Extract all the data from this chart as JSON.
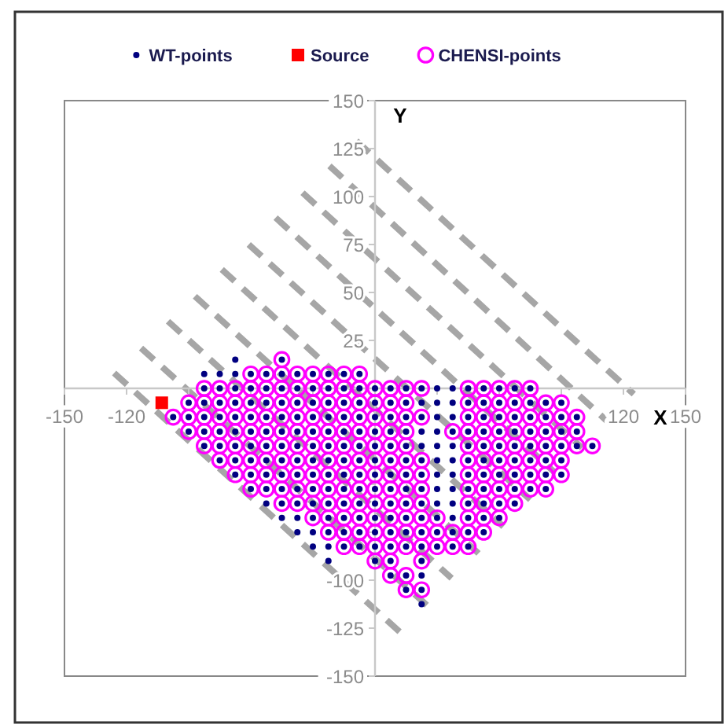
{
  "chart_data": {
    "type": "scatter",
    "xlabel": "X",
    "ylabel": "Y",
    "xlim": [
      -150,
      150
    ],
    "ylim": [
      -150,
      150
    ],
    "xticks": [
      -150,
      -120,
      {
        "value": -90,
        "label": null
      },
      {
        "value": -60,
        "label": null
      },
      {
        "value": -30,
        "label": null
      },
      {
        "value": 30,
        "label": null
      },
      {
        "value": 60,
        "label": null
      },
      {
        "value": 90,
        "label": null
      },
      120,
      150
    ],
    "yticks": [
      -150,
      -125,
      -100,
      {
        "value": -75,
        "label": null
      },
      {
        "value": -50,
        "label": null
      },
      {
        "value": -25,
        "label": null
      },
      25,
      50,
      75,
      100,
      125,
      150
    ],
    "legend": "top",
    "series": [
      {
        "name": "WT-points",
        "color": "#000080",
        "marker": "circle",
        "x": [
          -67.5,
          -45,
          -82.5,
          -75,
          -67.5,
          -60,
          -52.5,
          -45,
          -37.5,
          -30,
          -22.5,
          -15,
          -7.5,
          -82.5,
          -75,
          -67.5,
          -60,
          -52.5,
          -45,
          -37.5,
          -30,
          -22.5,
          -15,
          -7.5,
          0,
          7.5,
          15,
          22.5,
          30,
          37.5,
          45,
          52.5,
          60,
          67.5,
          75,
          -90,
          -82.5,
          -75,
          -67.5,
          -60,
          -52.5,
          -45,
          -37.5,
          -30,
          -22.5,
          -15,
          -7.5,
          0,
          7.5,
          15,
          22.5,
          30,
          37.5,
          45,
          52.5,
          60,
          67.5,
          75,
          82.5,
          90,
          -97.5,
          -90,
          -82.5,
          -75,
          -67.5,
          -60,
          -52.5,
          -45,
          -37.5,
          -30,
          -22.5,
          -15,
          -7.5,
          0,
          7.5,
          15,
          22.5,
          30,
          37.5,
          45,
          52.5,
          60,
          67.5,
          75,
          82.5,
          90,
          97.5,
          -90,
          -82.5,
          -75,
          -67.5,
          -60,
          -52.5,
          -45,
          -37.5,
          -30,
          -22.5,
          -15,
          -7.5,
          0,
          7.5,
          15,
          22.5,
          30,
          37.5,
          45,
          52.5,
          60,
          67.5,
          75,
          82.5,
          90,
          97.5,
          -82.5,
          -75,
          -67.5,
          -60,
          -52.5,
          -45,
          -37.5,
          -30,
          -22.5,
          -15,
          -7.5,
          0,
          7.5,
          15,
          22.5,
          30,
          37.5,
          45,
          52.5,
          60,
          67.5,
          75,
          82.5,
          90,
          97.5,
          105,
          -75,
          -67.5,
          -60,
          -52.5,
          -45,
          -37.5,
          -30,
          -22.5,
          -15,
          -7.5,
          0,
          7.5,
          15,
          22.5,
          30,
          37.5,
          45,
          52.5,
          60,
          67.5,
          75,
          82.5,
          90,
          -67.5,
          -60,
          -52.5,
          -45,
          -37.5,
          -30,
          -22.5,
          -15,
          -7.5,
          0,
          7.5,
          15,
          22.5,
          30,
          37.5,
          45,
          52.5,
          60,
          67.5,
          75,
          82.5,
          90,
          -60,
          -52.5,
          -45,
          -37.5,
          -30,
          -22.5,
          -15,
          -7.5,
          0,
          7.5,
          15,
          22.5,
          30,
          37.5,
          45,
          52.5,
          60,
          67.5,
          75,
          82.5,
          -52.5,
          -45,
          -37.5,
          -30,
          -22.5,
          -15,
          -7.5,
          0,
          7.5,
          15,
          22.5,
          30,
          37.5,
          45,
          52.5,
          60,
          67.5,
          -45,
          -37.5,
          -30,
          -22.5,
          -15,
          -7.5,
          0,
          7.5,
          15,
          22.5,
          30,
          37.5,
          45,
          52.5,
          60,
          -37.5,
          -30,
          -22.5,
          -15,
          -7.5,
          0,
          7.5,
          15,
          22.5,
          30,
          37.5,
          45,
          52.5,
          -30,
          -22.5,
          -15,
          -7.5,
          0,
          7.5,
          15,
          22.5,
          30,
          37.5,
          45,
          -22.5,
          0,
          7.5,
          22.5,
          7.5,
          15,
          22.5,
          15,
          22.5,
          22.5
        ],
        "values": [
          15,
          15,
          7.5,
          7.5,
          7.5,
          7.5,
          7.5,
          7.5,
          7.5,
          7.5,
          7.5,
          7.5,
          7.5,
          0,
          0,
          0,
          0,
          0,
          0,
          0,
          0,
          0,
          0,
          0,
          0,
          0,
          0,
          0,
          0,
          0,
          0,
          0,
          0,
          0,
          0,
          -7.5,
          -7.5,
          -7.5,
          -7.5,
          -7.5,
          -7.5,
          -7.5,
          -7.5,
          -7.5,
          -7.5,
          -7.5,
          -7.5,
          -7.5,
          -7.5,
          -7.5,
          -7.5,
          -7.5,
          -7.5,
          -7.5,
          -7.5,
          -7.5,
          -7.5,
          -7.5,
          -7.5,
          -7.5,
          -15,
          -15,
          -15,
          -15,
          -15,
          -15,
          -15,
          -15,
          -15,
          -15,
          -15,
          -15,
          -15,
          -15,
          -15,
          -15,
          -15,
          -15,
          -15,
          -15,
          -15,
          -15,
          -15,
          -15,
          -15,
          -15,
          -15,
          -22.5,
          -22.5,
          -22.5,
          -22.5,
          -22.5,
          -22.5,
          -22.5,
          -22.5,
          -22.5,
          -22.5,
          -22.5,
          -22.5,
          -22.5,
          -22.5,
          -22.5,
          -22.5,
          -22.5,
          -22.5,
          -22.5,
          -22.5,
          -22.5,
          -22.5,
          -22.5,
          -22.5,
          -22.5,
          -22.5,
          -30,
          -30,
          -30,
          -30,
          -30,
          -30,
          -30,
          -30,
          -30,
          -30,
          -30,
          -30,
          -30,
          -30,
          -30,
          -30,
          -30,
          -30,
          -30,
          -30,
          -30,
          -30,
          -30,
          -30,
          -30,
          -30,
          -37.5,
          -37.5,
          -37.5,
          -37.5,
          -37.5,
          -37.5,
          -37.5,
          -37.5,
          -37.5,
          -37.5,
          -37.5,
          -37.5,
          -37.5,
          -37.5,
          -37.5,
          -37.5,
          -37.5,
          -37.5,
          -37.5,
          -37.5,
          -37.5,
          -37.5,
          -37.5,
          -45,
          -45,
          -45,
          -45,
          -45,
          -45,
          -45,
          -45,
          -45,
          -45,
          -45,
          -45,
          -45,
          -45,
          -45,
          -45,
          -45,
          -45,
          -45,
          -45,
          -45,
          -45,
          -52.5,
          -52.5,
          -52.5,
          -52.5,
          -52.5,
          -52.5,
          -52.5,
          -52.5,
          -52.5,
          -52.5,
          -52.5,
          -52.5,
          -52.5,
          -52.5,
          -52.5,
          -52.5,
          -52.5,
          -52.5,
          -52.5,
          -52.5,
          -60,
          -60,
          -60,
          -60,
          -60,
          -60,
          -60,
          -60,
          -60,
          -60,
          -60,
          -60,
          -60,
          -60,
          -60,
          -60,
          -60,
          -67.5,
          -67.5,
          -67.5,
          -67.5,
          -67.5,
          -67.5,
          -67.5,
          -67.5,
          -67.5,
          -67.5,
          -67.5,
          -67.5,
          -67.5,
          -67.5,
          -67.5,
          -75,
          -75,
          -75,
          -75,
          -75,
          -75,
          -75,
          -75,
          -75,
          -75,
          -75,
          -75,
          -75,
          -82.5,
          -82.5,
          -82.5,
          -82.5,
          -82.5,
          -82.5,
          -82.5,
          -82.5,
          -82.5,
          -82.5,
          -82.5,
          -90,
          -90,
          -90,
          -90,
          -97.5,
          -97.5,
          -97.5,
          -105,
          -105,
          -112.5
        ]
      },
      {
        "name": "Source",
        "color": "#ff0000",
        "marker": "square",
        "x": [
          -103
        ],
        "values": [
          -7.5
        ]
      },
      {
        "name": "CHENSI-points",
        "color": "#ff00ff",
        "marker": "circle-open",
        "x": [
          -45,
          -60,
          -52.5,
          -45,
          -37.5,
          -30,
          -22.5,
          -15,
          -7.5,
          -82.5,
          -75,
          -67.5,
          -60,
          -52.5,
          -45,
          -37.5,
          -30,
          -22.5,
          -15,
          -7.5,
          0,
          7.5,
          15,
          22.5,
          45,
          52.5,
          60,
          67.5,
          75,
          -90,
          -82.5,
          -75,
          -67.5,
          -60,
          -52.5,
          -45,
          -37.5,
          -30,
          -22.5,
          -15,
          -7.5,
          0,
          7.5,
          15,
          45,
          52.5,
          60,
          67.5,
          75,
          82.5,
          90,
          -97.5,
          -90,
          -82.5,
          -75,
          -67.5,
          -60,
          -52.5,
          -45,
          -37.5,
          -30,
          -22.5,
          -15,
          -7.5,
          0,
          7.5,
          15,
          22.5,
          45,
          52.5,
          60,
          67.5,
          75,
          82.5,
          90,
          97.5,
          -90,
          -82.5,
          -75,
          -67.5,
          -60,
          -52.5,
          -45,
          -37.5,
          -30,
          -22.5,
          -15,
          -7.5,
          0,
          7.5,
          15,
          37.5,
          45,
          52.5,
          60,
          67.5,
          75,
          82.5,
          90,
          97.5,
          -82.5,
          -75,
          -67.5,
          -60,
          -52.5,
          -45,
          -37.5,
          -30,
          -22.5,
          -15,
          -7.5,
          0,
          7.5,
          15,
          45,
          52.5,
          60,
          67.5,
          75,
          82.5,
          90,
          97.5,
          105,
          -75,
          -67.5,
          -60,
          -52.5,
          -45,
          -37.5,
          -30,
          -22.5,
          -15,
          -7.5,
          0,
          7.5,
          15,
          22.5,
          45,
          52.5,
          60,
          67.5,
          75,
          82.5,
          90,
          -67.5,
          -60,
          -52.5,
          -45,
          -37.5,
          -30,
          -22.5,
          -15,
          -7.5,
          0,
          7.5,
          15,
          22.5,
          45,
          52.5,
          60,
          67.5,
          75,
          82.5,
          90,
          -60,
          -52.5,
          -45,
          -37.5,
          -30,
          -22.5,
          -15,
          -7.5,
          0,
          7.5,
          15,
          22.5,
          45,
          52.5,
          60,
          67.5,
          75,
          82.5,
          -45,
          -37.5,
          -30,
          -22.5,
          -15,
          -7.5,
          0,
          7.5,
          15,
          22.5,
          45,
          52.5,
          60,
          67.5,
          -30,
          -22.5,
          -15,
          -7.5,
          0,
          7.5,
          15,
          22.5,
          30,
          45,
          52.5,
          60,
          -22.5,
          -15,
          -7.5,
          0,
          7.5,
          15,
          22.5,
          30,
          37.5,
          45,
          52.5,
          -15,
          -7.5,
          0,
          7.5,
          15,
          22.5,
          30,
          37.5,
          45,
          0,
          7.5,
          22.5,
          7.5,
          15,
          15,
          22.5
        ],
        "values": [
          15,
          7.5,
          7.5,
          7.5,
          7.5,
          7.5,
          7.5,
          7.5,
          7.5,
          0,
          0,
          0,
          0,
          0,
          0,
          0,
          0,
          0,
          0,
          0,
          0,
          0,
          0,
          0,
          0,
          0,
          0,
          0,
          0,
          -7.5,
          -7.5,
          -7.5,
          -7.5,
          -7.5,
          -7.5,
          -7.5,
          -7.5,
          -7.5,
          -7.5,
          -7.5,
          -7.5,
          -7.5,
          -7.5,
          -7.5,
          -7.5,
          -7.5,
          -7.5,
          -7.5,
          -7.5,
          -7.5,
          -7.5,
          -15,
          -15,
          -15,
          -15,
          -15,
          -15,
          -15,
          -15,
          -15,
          -15,
          -15,
          -15,
          -15,
          -15,
          -15,
          -15,
          -15,
          -15,
          -15,
          -15,
          -15,
          -15,
          -15,
          -15,
          -15,
          -22.5,
          -22.5,
          -22.5,
          -22.5,
          -22.5,
          -22.5,
          -22.5,
          -22.5,
          -22.5,
          -22.5,
          -22.5,
          -22.5,
          -22.5,
          -22.5,
          -22.5,
          -22.5,
          -22.5,
          -22.5,
          -22.5,
          -22.5,
          -22.5,
          -22.5,
          -22.5,
          -22.5,
          -30,
          -30,
          -30,
          -30,
          -30,
          -30,
          -30,
          -30,
          -30,
          -30,
          -30,
          -30,
          -30,
          -30,
          -30,
          -30,
          -30,
          -30,
          -30,
          -30,
          -30,
          -30,
          -30,
          -37.5,
          -37.5,
          -37.5,
          -37.5,
          -37.5,
          -37.5,
          -37.5,
          -37.5,
          -37.5,
          -37.5,
          -37.5,
          -37.5,
          -37.5,
          -37.5,
          -37.5,
          -37.5,
          -37.5,
          -37.5,
          -37.5,
          -37.5,
          -37.5,
          -45,
          -45,
          -45,
          -45,
          -45,
          -45,
          -45,
          -45,
          -45,
          -45,
          -45,
          -45,
          -45,
          -45,
          -45,
          -45,
          -45,
          -45,
          -45,
          -45,
          -52.5,
          -52.5,
          -52.5,
          -52.5,
          -52.5,
          -52.5,
          -52.5,
          -52.5,
          -52.5,
          -52.5,
          -52.5,
          -52.5,
          -52.5,
          -52.5,
          -52.5,
          -52.5,
          -52.5,
          -52.5,
          -60,
          -60,
          -60,
          -60,
          -60,
          -60,
          -60,
          -60,
          -60,
          -60,
          -60,
          -60,
          -60,
          -60,
          -67.5,
          -67.5,
          -67.5,
          -67.5,
          -67.5,
          -67.5,
          -67.5,
          -67.5,
          -67.5,
          -67.5,
          -67.5,
          -67.5,
          -75,
          -75,
          -75,
          -75,
          -75,
          -75,
          -75,
          -75,
          -75,
          -75,
          -75,
          -82.5,
          -82.5,
          -82.5,
          -82.5,
          -82.5,
          -82.5,
          -82.5,
          -82.5,
          -82.5,
          -90,
          -90,
          -90,
          -97.5,
          -97.5,
          -105,
          -105
        ]
      },
      {
        "type": "line",
        "color": "#a6a6a6",
        "line_style": "dashed",
        "x": [
          -126,
          12
        ],
        "values": [
          8,
          -127
        ]
      },
      {
        "type": "line",
        "color": "#a6a6a6",
        "line_style": "dashed",
        "x": [
          -113,
          25
        ],
        "values": [
          21,
          -113
        ]
      },
      {
        "type": "line",
        "color": "#a6a6a6",
        "line_style": "dashed",
        "x": [
          -100,
          37
        ],
        "values": [
          35,
          -99
        ]
      },
      {
        "type": "line",
        "color": "#a6a6a6",
        "line_style": "dashed",
        "x": [
          -87,
          50
        ],
        "values": [
          48,
          -86
        ]
      },
      {
        "type": "line",
        "color": "#a6a6a6",
        "line_style": "dashed",
        "x": [
          -74,
          62
        ],
        "values": [
          62,
          -72
        ]
      },
      {
        "type": "line",
        "color": "#a6a6a6",
        "line_style": "dashed",
        "x": [
          -61,
          75
        ],
        "values": [
          75,
          -58
        ]
      },
      {
        "type": "line",
        "color": "#a6a6a6",
        "line_style": "dashed",
        "x": [
          -48,
          87
        ],
        "values": [
          89,
          -44
        ]
      },
      {
        "type": "line",
        "color": "#a6a6a6",
        "line_style": "dashed",
        "x": [
          -35,
          100
        ],
        "values": [
          102,
          -31
        ]
      },
      {
        "type": "line",
        "color": "#a6a6a6",
        "line_style": "dashed",
        "x": [
          -22,
          112
        ],
        "values": [
          116,
          -17
        ]
      },
      {
        "type": "line",
        "color": "#a6a6a6",
        "line_style": "dashed",
        "x": [
          -9,
          125
        ],
        "values": [
          129,
          -3
        ]
      }
    ]
  }
}
